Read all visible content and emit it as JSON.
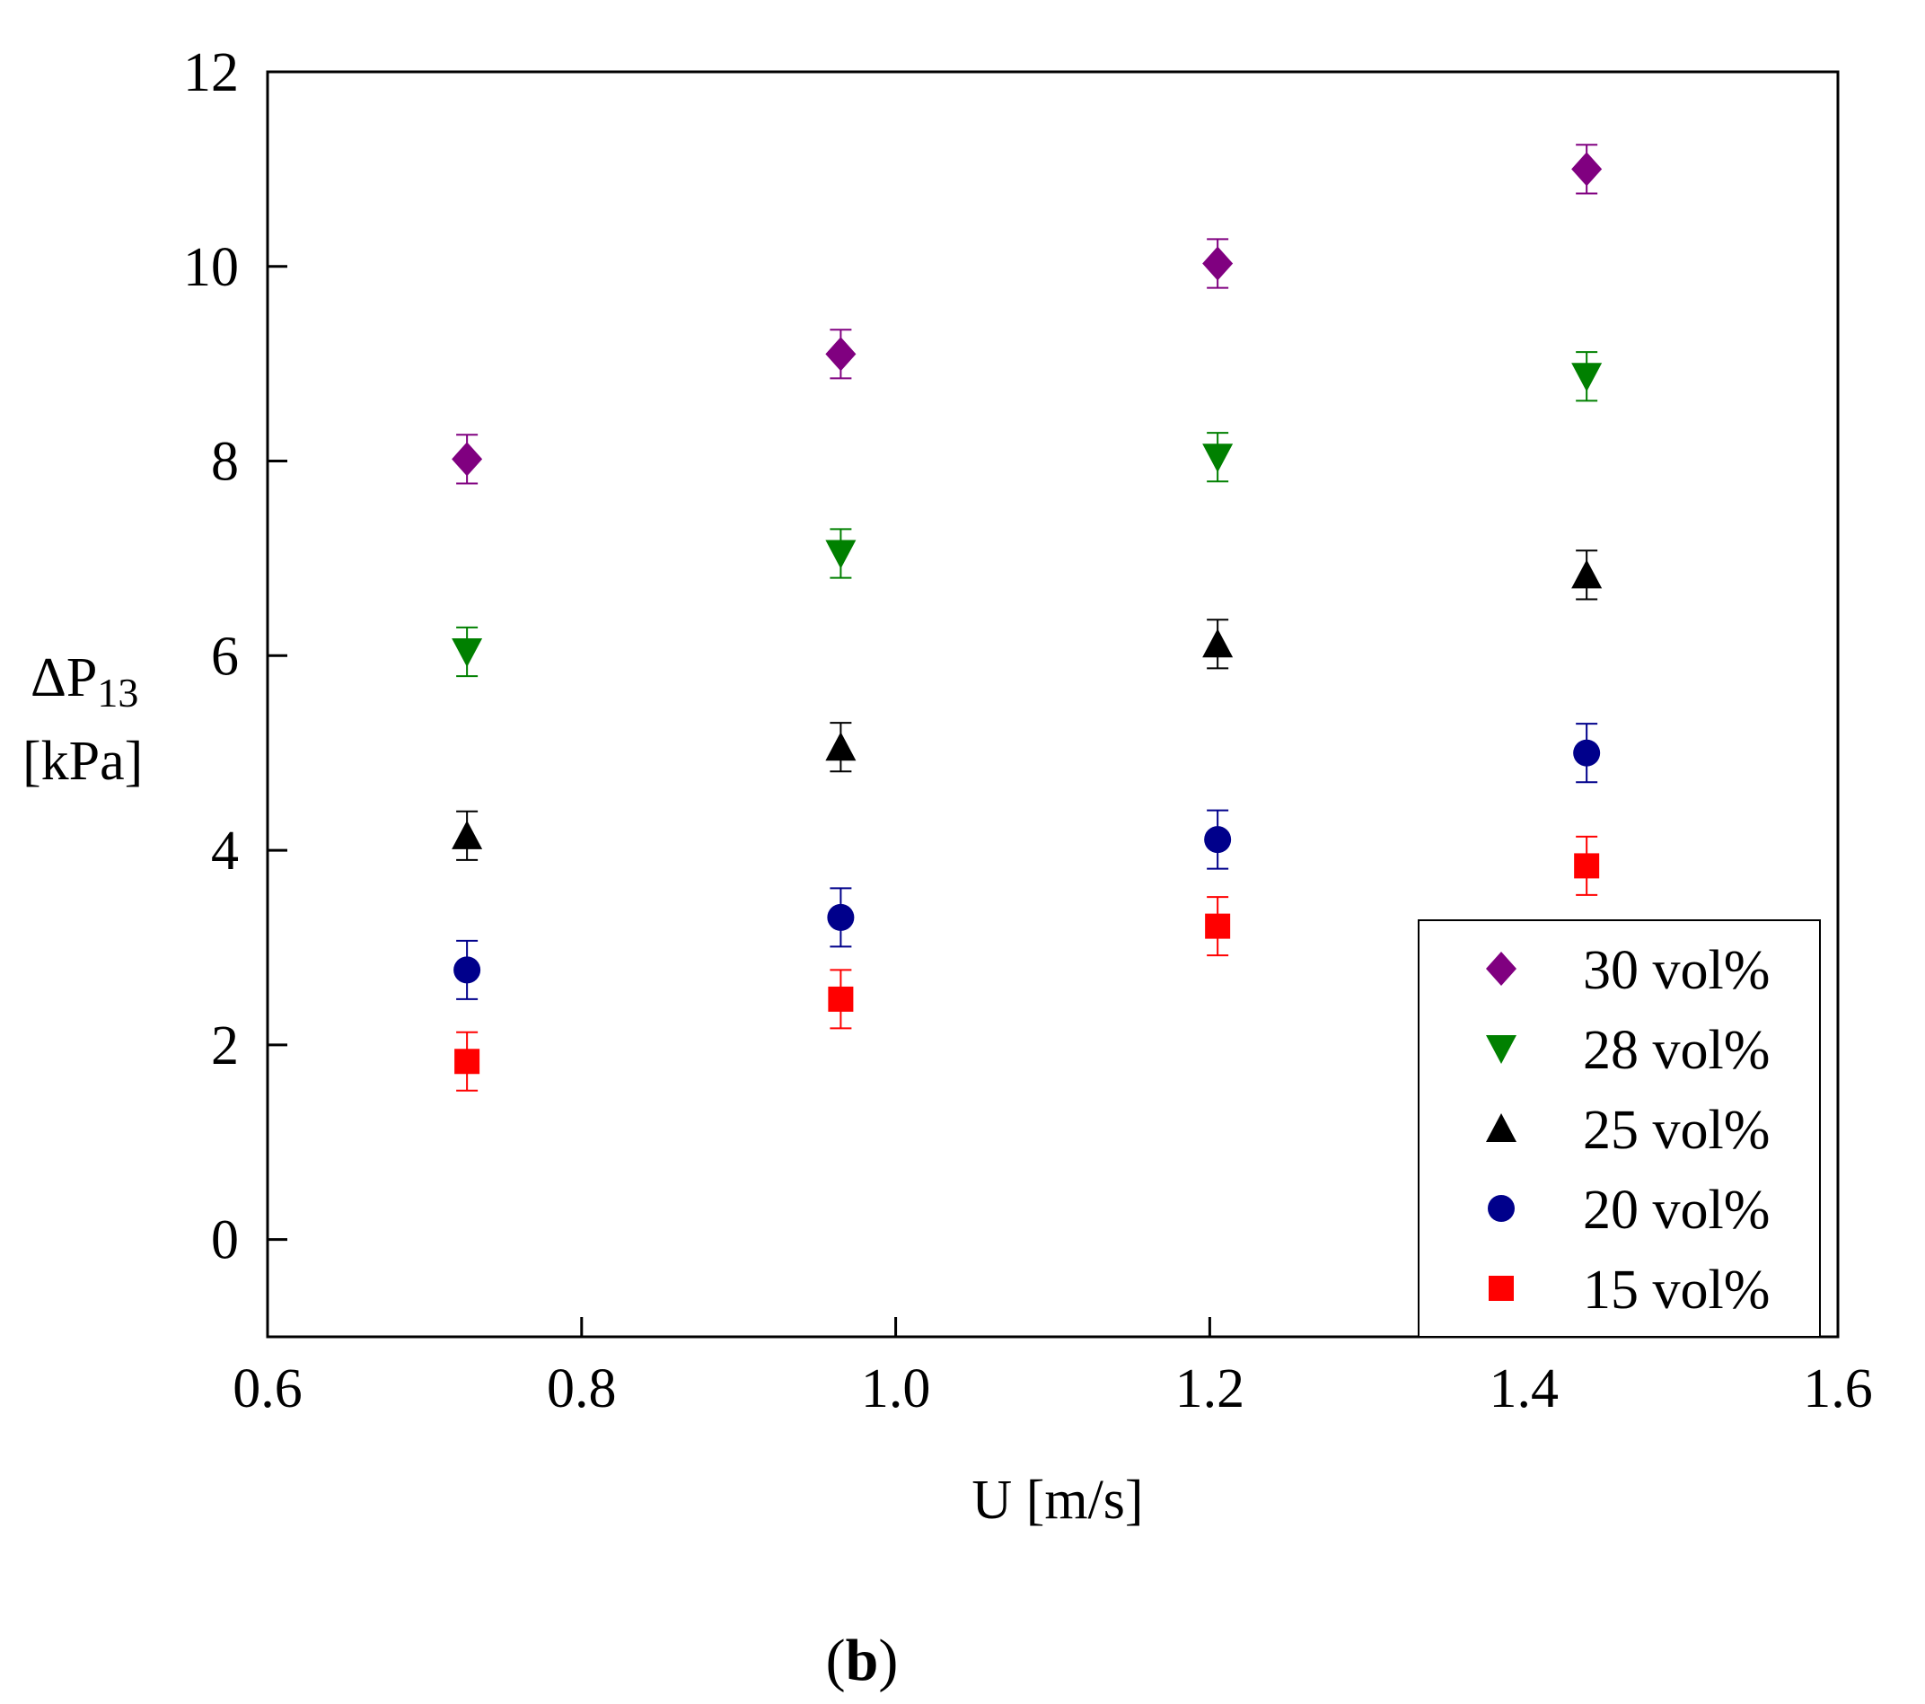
{
  "chart_data": {
    "type": "scatter",
    "panel_label_open": "(",
    "panel_label_letter": "b",
    "panel_label_close": ")",
    "xlabel": "U [m/s]",
    "ylabel_prefix": "ΔP",
    "ylabel_subscript": "13",
    "ylabel_unit": "[kPa]",
    "xlim": [
      0.6,
      1.6
    ],
    "ylim": [
      -1,
      12
    ],
    "xticks": [
      0.6,
      0.8,
      1.0,
      1.2,
      1.4,
      1.6
    ],
    "xtick_labels": [
      "0.6",
      "0.8",
      "1.0",
      "1.2",
      "1.4",
      "1.6"
    ],
    "yticks": [
      0,
      2,
      4,
      6,
      8,
      10,
      12
    ],
    "ytick_labels": [
      "0",
      "2",
      "4",
      "6",
      "8",
      "10",
      "12"
    ],
    "grid": false,
    "legend_position": "bottom-right",
    "x": [
      0.727,
      0.965,
      1.205,
      1.44
    ],
    "series": [
      {
        "name": "30 vol%",
        "marker": "diamond",
        "color": "#800080",
        "values": [
          8.02,
          9.1,
          10.03,
          11.0
        ],
        "errors": [
          0.25,
          0.25,
          0.25,
          0.25
        ]
      },
      {
        "name": "28 vol%",
        "marker": "triangle-down",
        "color": "#008000",
        "values": [
          6.04,
          7.05,
          8.04,
          8.87
        ],
        "errors": [
          0.25,
          0.25,
          0.25,
          0.25
        ]
      },
      {
        "name": "25 vol%",
        "marker": "triangle-up",
        "color": "#000000",
        "values": [
          4.15,
          5.06,
          6.12,
          6.83
        ],
        "errors": [
          0.25,
          0.25,
          0.25,
          0.25
        ]
      },
      {
        "name": "20 vol%",
        "marker": "circle",
        "color": "#00008B",
        "values": [
          2.77,
          3.31,
          4.11,
          5.0
        ],
        "errors": [
          0.3,
          0.3,
          0.3,
          0.3
        ]
      },
      {
        "name": "15 vol%",
        "marker": "square",
        "color": "#FF0000",
        "values": [
          1.83,
          2.47,
          3.22,
          3.84
        ],
        "errors": [
          0.3,
          0.3,
          0.3,
          0.3
        ]
      }
    ]
  }
}
